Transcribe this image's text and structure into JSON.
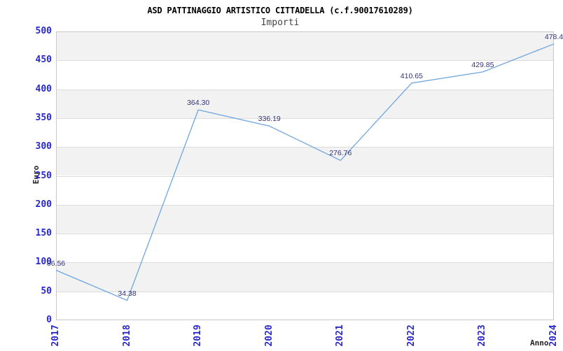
{
  "chart_data": {
    "type": "line",
    "title": "ASD PATTINAGGIO ARTISTICO CITTADELLA (c.f.90017610289)",
    "subtitle": "Importi",
    "xlabel": "Anno",
    "ylabel": "Euro",
    "categories": [
      "2017",
      "2018",
      "2019",
      "2020",
      "2021",
      "2022",
      "2023",
      "2024"
    ],
    "series": [
      {
        "name": "Importi",
        "values": [
          86.56,
          34.38,
          364.3,
          336.19,
          276.76,
          410.65,
          429.85,
          478.4
        ]
      }
    ],
    "point_labels": [
      "86.56",
      "34.38",
      "364.30",
      "336.19",
      "276.76",
      "410.65",
      "429.85",
      "478.4"
    ],
    "ylim": [
      0,
      500
    ],
    "yticks": [
      500,
      450,
      400,
      350,
      300,
      250,
      200,
      150,
      100,
      50,
      0
    ],
    "legend": "none",
    "grid": "horizontal, alternating shaded bands every 50"
  },
  "style": {
    "line_color": "#6ea6de",
    "tick_label_color": "#2828cc",
    "data_label_color": "#333377",
    "band_color": "#f2f2f2",
    "band_alt_color": "#ffffff",
    "grid_color": "#dcdcdc",
    "border_color": "#c9c9c9",
    "title_color": "#000000",
    "subtitle_color": "#444444",
    "axis_title_color": "#222222",
    "background": "#ffffff"
  }
}
